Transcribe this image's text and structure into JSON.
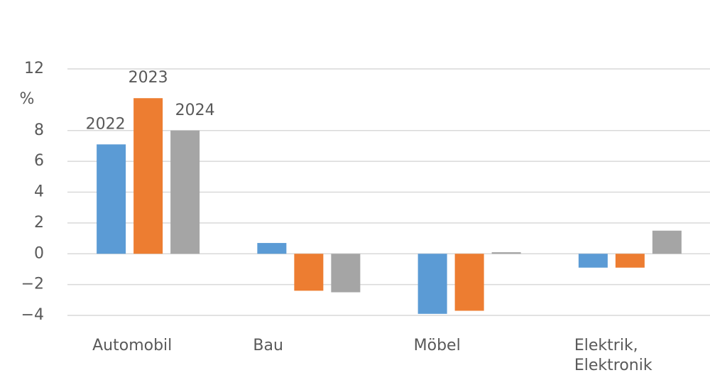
{
  "chart_data": {
    "type": "bar",
    "y_label": "%",
    "categories": [
      "Automobil",
      "Bau",
      "Möbel",
      "Elektrik, Elektronik"
    ],
    "series": [
      {
        "name": "2022",
        "color": "#5b9bd5",
        "values": [
          7.1,
          0.7,
          -3.9,
          -0.9
        ]
      },
      {
        "name": "2023",
        "color": "#ed7d31",
        "values": [
          10.1,
          -2.4,
          -3.7,
          -0.9
        ]
      },
      {
        "name": "2024",
        "color": "#a5a5a5",
        "values": [
          8.0,
          -2.5,
          0.1,
          1.5
        ]
      }
    ],
    "ylim": [
      -4,
      12
    ],
    "yticks": [
      {
        "value": -4,
        "label": "−4"
      },
      {
        "value": -2,
        "label": "−2"
      },
      0,
      2,
      4,
      6,
      8,
      12
    ],
    "grid": true
  }
}
